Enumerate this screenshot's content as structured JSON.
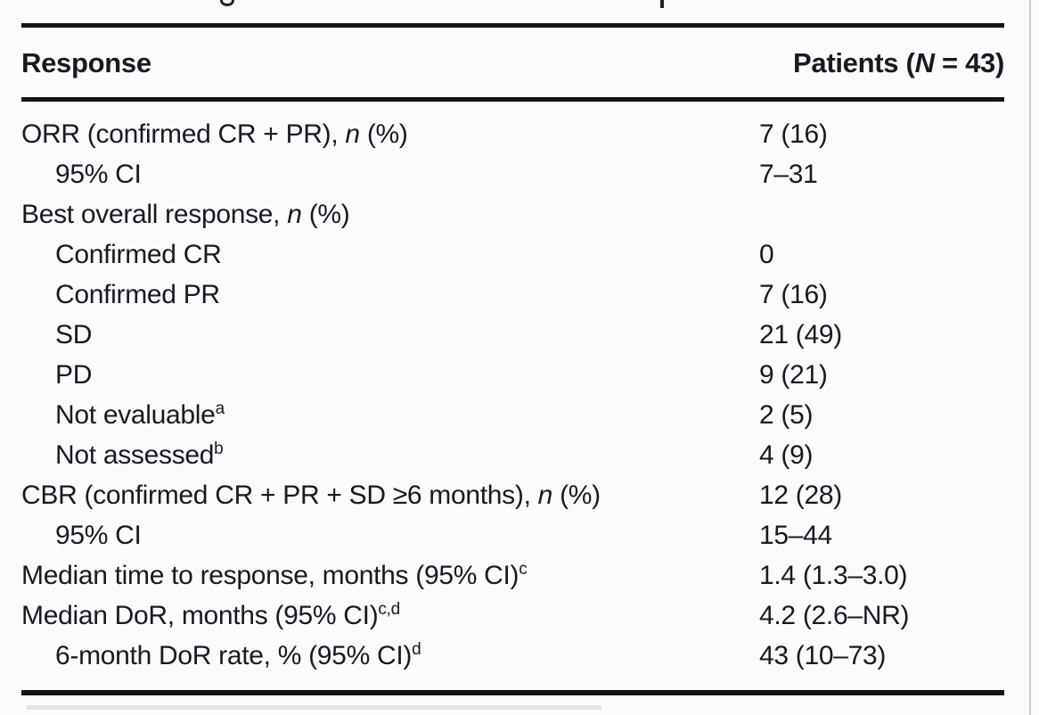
{
  "colors": {
    "text": "#191922",
    "rule": "#13131a",
    "background": "#fbfbfc"
  },
  "table": {
    "header": {
      "col1": "Response",
      "col2_parts": [
        {
          "text": "Patients (",
          "style": "bold"
        },
        {
          "text": "N",
          "style": "bold-italic"
        },
        {
          "text": " = 43)",
          "style": "bold"
        }
      ]
    },
    "rows": [
      {
        "indent": false,
        "label_parts": [
          {
            "text": "ORR (confirmed CR + PR), "
          },
          {
            "text": "n",
            "style": "italic"
          },
          {
            "text": " (%)"
          }
        ],
        "value": "7 (16)"
      },
      {
        "indent": true,
        "label_parts": [
          {
            "text": "95% CI"
          }
        ],
        "value": "7–31"
      },
      {
        "indent": false,
        "label_parts": [
          {
            "text": "Best overall response, "
          },
          {
            "text": "n",
            "style": "italic"
          },
          {
            "text": " (%)"
          }
        ],
        "value": ""
      },
      {
        "indent": true,
        "label_parts": [
          {
            "text": "Confirmed CR"
          }
        ],
        "value": "0"
      },
      {
        "indent": true,
        "label_parts": [
          {
            "text": "Confirmed PR"
          }
        ],
        "value": "7 (16)"
      },
      {
        "indent": true,
        "label_parts": [
          {
            "text": "SD"
          }
        ],
        "value": "21 (49)"
      },
      {
        "indent": true,
        "label_parts": [
          {
            "text": "PD"
          }
        ],
        "value": "9 (21)"
      },
      {
        "indent": true,
        "label_parts": [
          {
            "text": "Not evaluable"
          },
          {
            "text": "a",
            "style": "sup"
          }
        ],
        "value": "2 (5)"
      },
      {
        "indent": true,
        "label_parts": [
          {
            "text": "Not assessed"
          },
          {
            "text": "b",
            "style": "sup"
          }
        ],
        "value": "4 (9)"
      },
      {
        "indent": false,
        "label_parts": [
          {
            "text": "CBR (confirmed CR + PR + SD ≥6 months), "
          },
          {
            "text": "n",
            "style": "italic"
          },
          {
            "text": " (%)"
          }
        ],
        "value": "12 (28)"
      },
      {
        "indent": true,
        "label_parts": [
          {
            "text": "95% CI"
          }
        ],
        "value": "15–44"
      },
      {
        "indent": false,
        "label_parts": [
          {
            "text": "Median time to response, months (95% CI)"
          },
          {
            "text": "c",
            "style": "sup"
          }
        ],
        "value": "1.4 (1.3–3.0)"
      },
      {
        "indent": false,
        "label_parts": [
          {
            "text": "Median DoR, months (95% CI)"
          },
          {
            "text": "c,d",
            "style": "sup"
          }
        ],
        "value": "4.2 (2.6–NR)"
      },
      {
        "indent": true,
        "label_parts": [
          {
            "text": "6-month DoR rate, % (95% CI)"
          },
          {
            "text": "d",
            "style": "sup"
          }
        ],
        "value": "43 (10–73)"
      }
    ]
  }
}
